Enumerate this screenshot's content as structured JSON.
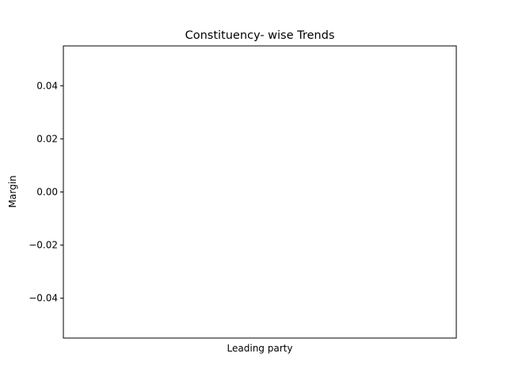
{
  "chart_data": {
    "type": "bar",
    "title": "Constituency- wise Trends",
    "xlabel": "Leading party",
    "ylabel": "Margin",
    "categories": [],
    "values": [],
    "ylim": [
      -0.055,
      0.055
    ],
    "yticks": [
      -0.04,
      -0.02,
      0.0,
      0.02,
      0.04
    ],
    "ytick_labels": [
      "−0.04",
      "−0.02",
      "0.00",
      "0.02",
      "0.04"
    ],
    "grid": false,
    "legend": "none"
  }
}
